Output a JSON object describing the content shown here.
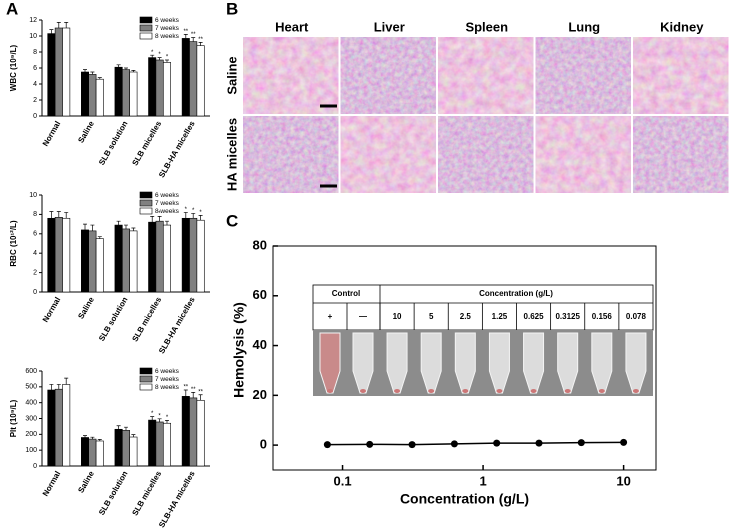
{
  "panel_labels": [
    "A",
    "B",
    "C"
  ],
  "histology": {
    "columns": [
      "Heart",
      "Liver",
      "Spleen",
      "Lung",
      "Kidney"
    ],
    "rows": [
      "Saline",
      "HA micelles"
    ]
  },
  "inset": {
    "header": [
      "Control",
      "Concentration (g/L)"
    ],
    "cells": [
      "+",
      "—",
      "10",
      "5",
      "2.5",
      "1.25",
      "0.625",
      "0.3125",
      "0.156",
      "0.078"
    ]
  },
  "chart_data": [
    {
      "type": "bar",
      "ylabel": "WBC (10⁹/L)",
      "categories": [
        "Normal",
        "Saline",
        "SLB solution",
        "SLB micelles",
        "SLB-HA micelles"
      ],
      "series": [
        {
          "name": "6 weeks",
          "color": "#000000",
          "values": [
            10.3,
            5.5,
            6.1,
            7.3,
            9.7
          ],
          "errors": [
            0.5,
            0.3,
            0.3,
            0.3,
            0.5
          ],
          "annotations": [
            null,
            null,
            null,
            "*",
            "**"
          ]
        },
        {
          "name": "7 weeks",
          "color": "#808080",
          "values": [
            11.0,
            5.2,
            5.8,
            7.0,
            9.3
          ],
          "errors": [
            0.7,
            0.3,
            0.2,
            0.3,
            0.5
          ],
          "annotations": [
            null,
            null,
            null,
            "*",
            "**"
          ]
        },
        {
          "name": "8 weeks",
          "color": "#ffffff",
          "values": [
            11.0,
            4.6,
            5.5,
            6.7,
            8.8
          ],
          "errors": [
            0.7,
            0.2,
            0.2,
            0.3,
            0.4
          ],
          "annotations": [
            null,
            null,
            null,
            "*",
            "**"
          ]
        }
      ],
      "ylim": [
        0,
        12
      ],
      "yticks": [
        0,
        2,
        4,
        6,
        8,
        10,
        12
      ]
    },
    {
      "type": "bar",
      "ylabel": "RBC (10¹²/L)",
      "categories": [
        "Normal",
        "Saline",
        "SLB solution",
        "SLB micelles",
        "SLB-HA micelles"
      ],
      "series": [
        {
          "name": "6 weeks",
          "color": "#000000",
          "values": [
            7.6,
            6.4,
            6.9,
            7.2,
            7.6
          ],
          "errors": [
            0.7,
            0.6,
            0.4,
            0.6,
            0.6
          ],
          "annotations": [
            null,
            null,
            null,
            null,
            "*"
          ]
        },
        {
          "name": "7 weeks",
          "color": "#808080",
          "values": [
            7.7,
            6.3,
            6.5,
            7.3,
            7.6
          ],
          "errors": [
            0.6,
            0.6,
            0.4,
            0.5,
            0.5
          ],
          "annotations": [
            null,
            null,
            null,
            "*",
            "*"
          ]
        },
        {
          "name": "8 weeks",
          "color": "#ffffff",
          "values": [
            7.6,
            5.5,
            6.3,
            6.9,
            7.4
          ],
          "errors": [
            0.6,
            0.2,
            0.3,
            0.4,
            0.5
          ],
          "annotations": [
            null,
            null,
            null,
            null,
            "*"
          ]
        }
      ],
      "ylim": [
        0,
        10
      ],
      "yticks": [
        0,
        2,
        4,
        6,
        8,
        10
      ]
    },
    {
      "type": "bar",
      "ylabel": "Plt (10⁹/L)",
      "categories": [
        "Normal",
        "Saline",
        "SLB solution",
        "SLB micelles",
        "SLB-HA micelles"
      ],
      "series": [
        {
          "name": "6 weeks",
          "color": "#000000",
          "values": [
            480,
            180,
            232,
            290,
            440
          ],
          "errors": [
            35,
            12,
            22,
            22,
            40
          ],
          "annotations": [
            null,
            null,
            null,
            "*",
            "**"
          ]
        },
        {
          "name": "7 weeks",
          "color": "#808080",
          "values": [
            485,
            170,
            225,
            278,
            430
          ],
          "errors": [
            30,
            12,
            20,
            20,
            35
          ],
          "annotations": [
            null,
            null,
            null,
            "*",
            "**"
          ]
        },
        {
          "name": "8 weeks",
          "color": "#ffffff",
          "values": [
            515,
            158,
            183,
            270,
            415
          ],
          "errors": [
            40,
            10,
            15,
            18,
            35
          ],
          "annotations": [
            null,
            null,
            null,
            "*",
            "**"
          ]
        }
      ],
      "ylim": [
        0,
        600
      ],
      "yticks": [
        0,
        100,
        200,
        300,
        400,
        500,
        600
      ]
    },
    {
      "type": "line",
      "xlabel": "Concentration (g/L)",
      "ylabel": "Hemolysis (%)",
      "xscale": "log",
      "x": [
        0.078,
        0.156,
        0.3125,
        0.625,
        1.25,
        2.5,
        5,
        10
      ],
      "values": [
        0.2,
        0.3,
        0.2,
        0.5,
        0.8,
        0.8,
        1.0,
        1.1
      ],
      "color": "#000000",
      "xlim": [
        0.032,
        17
      ],
      "xticks": [
        0.1,
        1,
        10
      ],
      "ylim": [
        -10,
        80
      ],
      "yticks": [
        0,
        20,
        40,
        60,
        80
      ]
    }
  ]
}
